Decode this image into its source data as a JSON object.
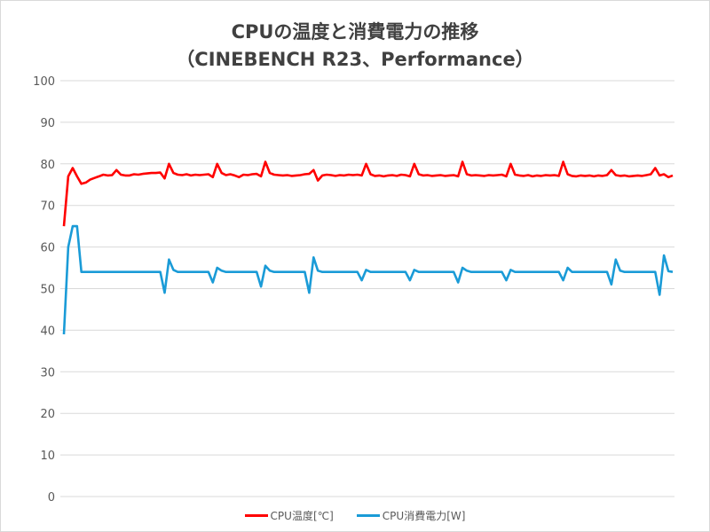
{
  "chart_data": {
    "type": "line",
    "title": "CPUの温度と消費電力の推移",
    "subtitle": "（CINEBENCH R23、Performance）",
    "xlabel": "",
    "ylabel": "",
    "ylim": [
      0,
      100
    ],
    "yticks": [
      0,
      10,
      20,
      30,
      40,
      50,
      60,
      70,
      80,
      90,
      100
    ],
    "grid": true,
    "legend_position": "bottom",
    "series": [
      {
        "name": "CPU温度[℃]",
        "color": "#ff0000",
        "values": [
          65,
          77,
          79,
          77,
          75.2,
          75.5,
          76.2,
          76.6,
          77,
          77.4,
          77.2,
          77.3,
          78.5,
          77.4,
          77.2,
          77.2,
          77.5,
          77.4,
          77.6,
          77.7,
          77.8,
          77.8,
          77.9,
          76.5,
          80,
          77.8,
          77.4,
          77.3,
          77.5,
          77.2,
          77.4,
          77.3,
          77.4,
          77.5,
          76.8,
          80,
          77.8,
          77.3,
          77.5,
          77.2,
          76.8,
          77.4,
          77.3,
          77.5,
          77.6,
          77,
          80.5,
          77.8,
          77.4,
          77.3,
          77.2,
          77.3,
          77.1,
          77.2,
          77.3,
          77.5,
          77.6,
          78.5,
          76,
          77.2,
          77.4,
          77.3,
          77.1,
          77.3,
          77.2,
          77.4,
          77.3,
          77.4,
          77.2,
          80,
          77.5,
          77.1,
          77.2,
          77,
          77.2,
          77.3,
          77.1,
          77.4,
          77.3,
          77,
          80,
          77.5,
          77.2,
          77.3,
          77.1,
          77.2,
          77.3,
          77.1,
          77.2,
          77.3,
          77,
          80.5,
          77.5,
          77.2,
          77.3,
          77.2,
          77.1,
          77.3,
          77.2,
          77.3,
          77.4,
          77,
          80,
          77.4,
          77.2,
          77.1,
          77.3,
          77,
          77.2,
          77.1,
          77.3,
          77.2,
          77.3,
          77.1,
          80.5,
          77.5,
          77.1,
          77,
          77.2,
          77.1,
          77.2,
          77,
          77.2,
          77.1,
          77.3,
          78.5,
          77.3,
          77.1,
          77.2,
          77,
          77.1,
          77.2,
          77.1,
          77.3,
          77.5,
          79,
          77.2,
          77.5,
          76.8,
          77.2
        ]
      },
      {
        "name": "CPU消費電力[W]",
        "color": "#1a9bd7",
        "values": [
          39,
          60,
          65,
          65,
          54,
          54,
          54,
          54,
          54,
          54,
          54,
          54,
          54,
          54,
          54,
          54,
          54,
          54,
          54,
          54,
          54,
          54,
          54,
          49,
          57,
          54.5,
          54,
          54,
          54,
          54,
          54,
          54,
          54,
          54,
          51.5,
          55,
          54.3,
          54,
          54,
          54,
          54,
          54,
          54,
          54,
          54,
          50.5,
          55.5,
          54.3,
          54,
          54,
          54,
          54,
          54,
          54,
          54,
          54,
          49,
          57.5,
          54.3,
          54,
          54,
          54,
          54,
          54,
          54,
          54,
          54,
          54,
          52,
          54.5,
          54,
          54,
          54,
          54,
          54,
          54,
          54,
          54,
          54,
          52,
          54.5,
          54,
          54,
          54,
          54,
          54,
          54,
          54,
          54,
          54,
          51.5,
          55,
          54.3,
          54,
          54,
          54,
          54,
          54,
          54,
          54,
          54,
          52,
          54.5,
          54,
          54,
          54,
          54,
          54,
          54,
          54,
          54,
          54,
          54,
          54,
          52,
          55,
          54,
          54,
          54,
          54,
          54,
          54,
          54,
          54,
          54,
          51,
          57,
          54.3,
          54,
          54,
          54,
          54,
          54,
          54,
          54,
          54,
          48.5,
          58,
          54.2,
          54
        ]
      }
    ]
  }
}
